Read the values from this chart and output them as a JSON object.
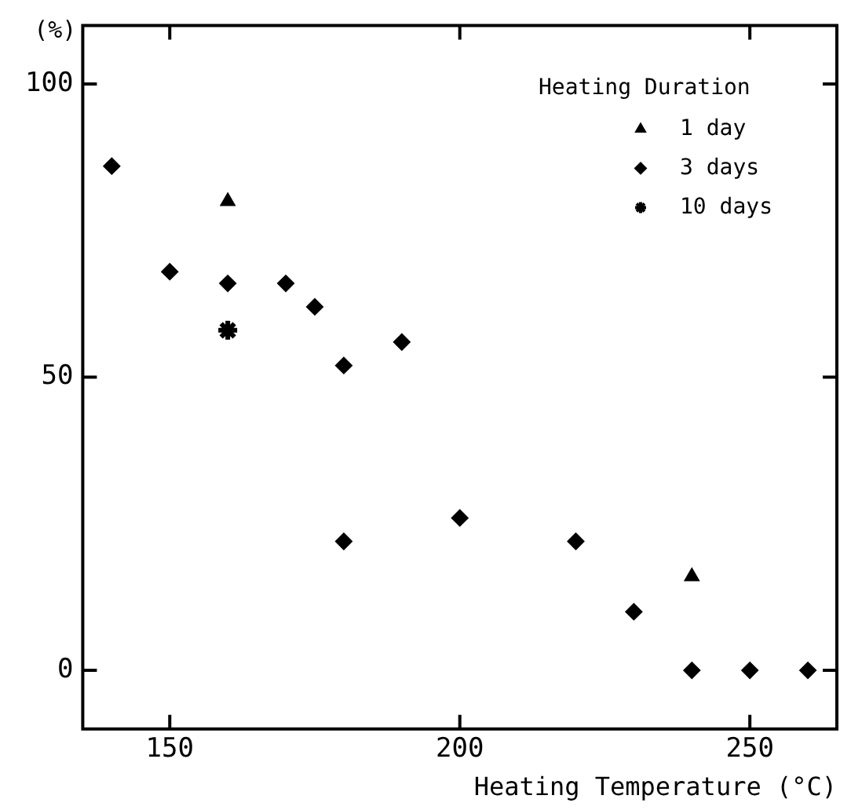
{
  "chart_data": {
    "type": "scatter",
    "xlabel": "Heating Temperature (°C)",
    "ylabel": "(%)",
    "legend_title": "Heating Duration",
    "xlim": [
      135,
      265
    ],
    "xticks": [
      150,
      200,
      250
    ],
    "ylim": [
      -10,
      110
    ],
    "yticks": [
      0,
      50,
      100
    ],
    "grid": false,
    "legend": "top right",
    "series": [
      {
        "name": "1 day",
        "color": "#000000",
        "marker": "triangle",
        "x": [
          160,
          240
        ],
        "values": [
          80,
          16
        ]
      },
      {
        "name": "3 days",
        "color": "#000000",
        "marker": "diamond",
        "x": [
          140,
          150,
          160,
          170,
          175,
          180,
          190,
          180,
          200,
          220,
          230,
          240,
          250,
          260
        ],
        "values": [
          86,
          68,
          66,
          66,
          62,
          52,
          56,
          22,
          26,
          22,
          10,
          0,
          0,
          0
        ]
      },
      {
        "name": "10 days",
        "color": "#000000",
        "marker": "cross",
        "x": [
          160
        ],
        "values": [
          58
        ]
      }
    ]
  }
}
